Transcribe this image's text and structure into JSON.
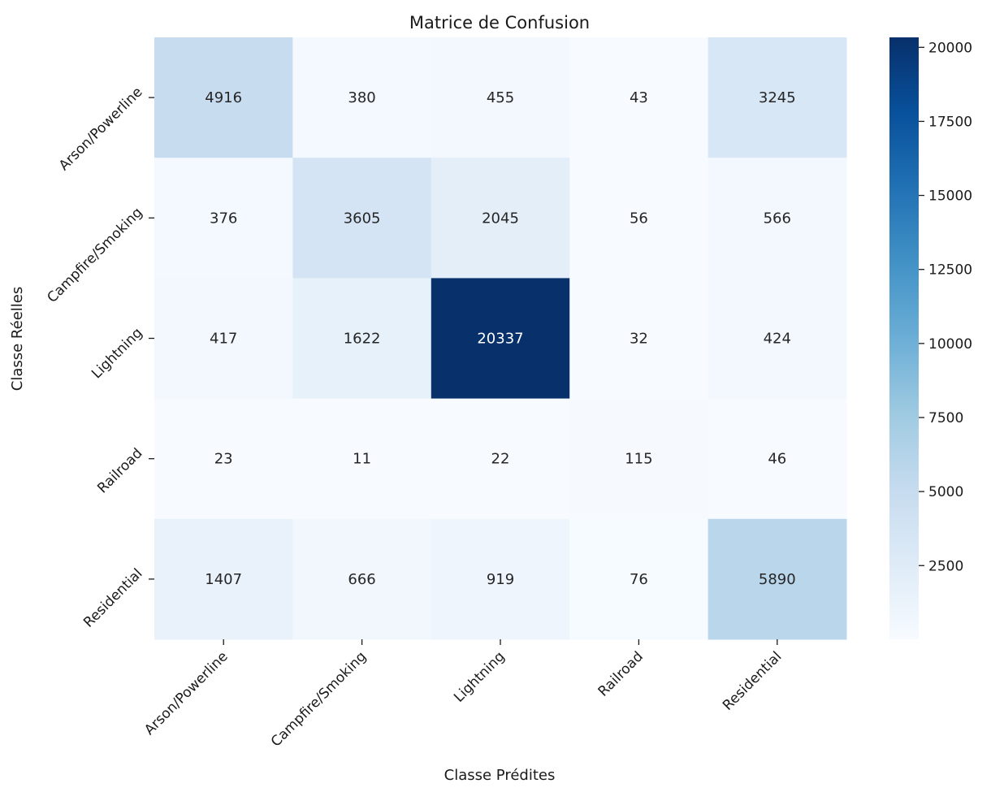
{
  "chart_data": {
    "type": "heatmap",
    "title": "Matrice de Confusion",
    "xlabel": "Classe Prédites",
    "ylabel": "Classe Réelles",
    "x_categories": [
      "Arson/Powerline",
      "Campfire/Smoking",
      "Lightning",
      "Railroad",
      "Residential"
    ],
    "y_categories": [
      "Arson/Powerline",
      "Campfire/Smoking",
      "Lightning",
      "Railroad",
      "Residential"
    ],
    "values": [
      [
        4916,
        380,
        455,
        43,
        3245
      ],
      [
        376,
        3605,
        2045,
        56,
        566
      ],
      [
        417,
        1622,
        20337,
        32,
        424
      ],
      [
        23,
        11,
        22,
        115,
        46
      ],
      [
        1407,
        666,
        919,
        76,
        5890
      ]
    ],
    "colormap": "Blues",
    "vmin": 11,
    "vmax": 20337,
    "colorbar_ticks": [
      2500,
      5000,
      7500,
      10000,
      12500,
      15000,
      17500,
      20000
    ],
    "grid": false,
    "colors": {
      "low": "#f7fbff",
      "high": "#08306b",
      "text_dark": "#262626",
      "text_light": "#ffffff"
    }
  }
}
